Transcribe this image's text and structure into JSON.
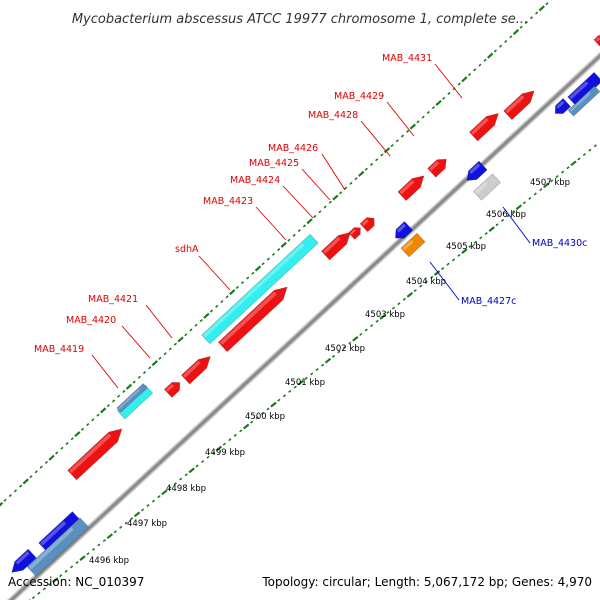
{
  "header": {
    "title": "Mycobacterium abscessus ATCC 19977 chromosome 1, complete se..."
  },
  "footer": {
    "accession": "Accession: NC_010397",
    "summary": "Topology: circular; Length: 5,067,172 bp; Genes: 4,970"
  },
  "colors": {
    "backbone": "#9a9a9a",
    "tick": "#1a7a1a",
    "forward_gene": "#ee1111",
    "reverse_gene": "#1111dd",
    "rrna_like": "#33eeee",
    "steelblue": "#5a8fbf",
    "orange": "#ee8800",
    "gray_gene": "#cccccc",
    "label_forward": "#dd0000",
    "label_reverse": "#0000cc"
  },
  "scale_labels": [
    {
      "text": "4496 kbp"
    },
    {
      "text": "4497 kbp"
    },
    {
      "text": "4498 kbp"
    },
    {
      "text": "4499 kbp"
    },
    {
      "text": "4500 kbp"
    },
    {
      "text": "4501 kbp"
    },
    {
      "text": "4502 kbp"
    },
    {
      "text": "4503 kbp"
    },
    {
      "text": "4504 kbp"
    },
    {
      "text": "4505 kbp"
    },
    {
      "text": "4506 kbp"
    },
    {
      "text": "4507 kbp"
    }
  ],
  "forward_labels": [
    {
      "text": "MAB_4419"
    },
    {
      "text": "MAB_4420"
    },
    {
      "text": "MAB_4421"
    },
    {
      "text": "sdhA"
    },
    {
      "text": "MAB_4423"
    },
    {
      "text": "MAB_4424"
    },
    {
      "text": "MAB_4425"
    },
    {
      "text": "MAB_4426"
    },
    {
      "text": "MAB_4428"
    },
    {
      "text": "MAB_4429"
    },
    {
      "text": "MAB_4431"
    }
  ],
  "reverse_labels": [
    {
      "text": "MAB_4427c"
    },
    {
      "text": "MAB_4430c"
    }
  ]
}
